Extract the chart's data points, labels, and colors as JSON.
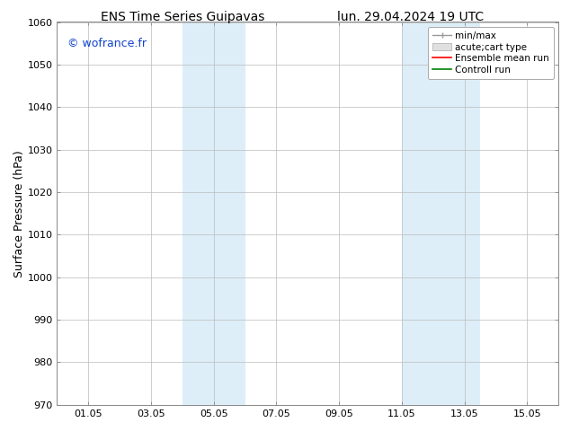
{
  "title_left": "ENS Time Series Guipavas",
  "title_right": "lun. 29.04.2024 19 UTC",
  "ylabel": "Surface Pressure (hPa)",
  "ylim": [
    970,
    1060
  ],
  "yticks": [
    970,
    980,
    990,
    1000,
    1010,
    1020,
    1030,
    1040,
    1050,
    1060
  ],
  "xtick_labels": [
    "01.05",
    "03.05",
    "05.05",
    "07.05",
    "09.05",
    "11.05",
    "13.05",
    "15.05"
  ],
  "xtick_positions": [
    1,
    3,
    5,
    7,
    9,
    11,
    13,
    15
  ],
  "xlim": [
    0,
    16
  ],
  "shaded_bands": [
    {
      "xmin": 4.0,
      "xmax": 6.0,
      "color": "#ddeef8"
    },
    {
      "xmin": 11.0,
      "xmax": 13.5,
      "color": "#ddeef8"
    }
  ],
  "watermark": "© wofrance.fr",
  "watermark_color": "#1144cc",
  "legend_items": [
    {
      "label": "min/max",
      "color": "#999999",
      "type": "errorbar"
    },
    {
      "label": "acute;cart type",
      "color": "#cccccc",
      "type": "bar"
    },
    {
      "label": "Ensemble mean run",
      "color": "#ff0000",
      "type": "line"
    },
    {
      "label": "Controll run",
      "color": "#008000",
      "type": "line"
    }
  ],
  "background_color": "#ffffff",
  "grid_color": "#bbbbbb",
  "title_fontsize": 10,
  "tick_fontsize": 8,
  "ylabel_fontsize": 9,
  "watermark_fontsize": 9,
  "legend_fontsize": 7.5
}
